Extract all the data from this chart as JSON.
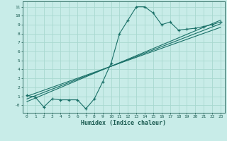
{
  "title": "",
  "xlabel": "Humidex (Indice chaleur)",
  "ylabel": "",
  "background_color": "#c8ece8",
  "grid_color": "#a8d8d0",
  "line_color": "#1a7068",
  "xlim": [
    -0.5,
    23.5
  ],
  "ylim": [
    -0.85,
    11.6
  ],
  "xticks": [
    0,
    1,
    2,
    3,
    4,
    5,
    6,
    7,
    8,
    9,
    10,
    11,
    12,
    13,
    14,
    15,
    16,
    17,
    18,
    19,
    20,
    21,
    22,
    23
  ],
  "yticks": [
    0,
    1,
    2,
    3,
    4,
    5,
    6,
    7,
    8,
    9,
    10,
    11
  ],
  "main_x": [
    0,
    1,
    2,
    3,
    4,
    5,
    6,
    7,
    8,
    9,
    10,
    11,
    12,
    13,
    14,
    15,
    16,
    17,
    18,
    19,
    20,
    21,
    22,
    23
  ],
  "main_y": [
    1.1,
    0.9,
    -0.2,
    0.7,
    0.6,
    0.6,
    0.6,
    -0.4,
    0.7,
    2.6,
    4.7,
    8.0,
    9.5,
    11.0,
    11.0,
    10.3,
    9.0,
    9.3,
    8.4,
    8.5,
    8.6,
    8.8,
    9.0,
    9.3
  ],
  "line1_x": [
    0,
    23
  ],
  "line1_y": [
    1.0,
    8.7
  ],
  "line2_x": [
    0,
    23
  ],
  "line2_y": [
    0.7,
    9.1
  ],
  "line3_x": [
    0,
    23
  ],
  "line3_y": [
    0.4,
    9.5
  ]
}
